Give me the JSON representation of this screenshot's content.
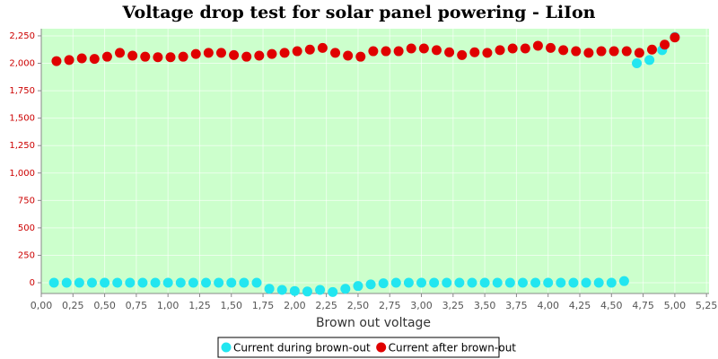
{
  "chart_data": {
    "type": "scatter",
    "title": "Voltage drop test for solar panel powering -  LiIon",
    "x_label": "Brown out voltage",
    "xlim": [
      0,
      5.27
    ],
    "ylim": [
      -98,
      2315
    ],
    "xticks": [
      {
        "value": 0,
        "label": "0,00"
      },
      {
        "value": 0.25,
        "label": "0,25"
      },
      {
        "value": 0.5,
        "label": "0,50"
      },
      {
        "value": 0.75,
        "label": "0,75"
      },
      {
        "value": 1,
        "label": "1,00"
      },
      {
        "value": 1.25,
        "label": "1,25"
      },
      {
        "value": 1.5,
        "label": "1,50"
      },
      {
        "value": 1.75,
        "label": "1,75"
      },
      {
        "value": 2,
        "label": "2,00"
      },
      {
        "value": 2.25,
        "label": "2,25"
      },
      {
        "value": 2.5,
        "label": "2,50"
      },
      {
        "value": 2.75,
        "label": "2,75"
      },
      {
        "value": 3,
        "label": "3,00"
      },
      {
        "value": 3.25,
        "label": "3,25"
      },
      {
        "value": 3.5,
        "label": "3,50"
      },
      {
        "value": 3.75,
        "label": "3,75"
      },
      {
        "value": 4,
        "label": "4,00"
      },
      {
        "value": 4.25,
        "label": "4,25"
      },
      {
        "value": 4.5,
        "label": "4,50"
      },
      {
        "value": 4.75,
        "label": "4,75"
      },
      {
        "value": 5,
        "label": "5,00"
      },
      {
        "value": 5.25,
        "label": "5,25"
      }
    ],
    "yticks": [
      0,
      250,
      500,
      750,
      {
        "value": 1000,
        "label": "1,000"
      },
      {
        "value": 1250,
        "label": "1,250"
      },
      {
        "value": 1500,
        "label": "1,500"
      },
      {
        "value": 1750,
        "label": "1,750"
      },
      {
        "value": 2000,
        "label": "2,000"
      },
      {
        "value": 2250,
        "label": "2,250"
      }
    ],
    "grid": true,
    "series": [
      {
        "name": "Current during brown-out",
        "color": "#22e6f0",
        "x": [
          0.1,
          0.2,
          0.3,
          0.4,
          0.5,
          0.6,
          0.7,
          0.8,
          0.9,
          1.0,
          1.1,
          1.2,
          1.3,
          1.4,
          1.5,
          1.6,
          1.7,
          1.8,
          1.9,
          2.0,
          2.1,
          2.2,
          2.3,
          2.4,
          2.5,
          2.6,
          2.7,
          2.8,
          2.9,
          3.0,
          3.1,
          3.2,
          3.3,
          3.4,
          3.5,
          3.6,
          3.7,
          3.8,
          3.9,
          4.0,
          4.1,
          4.2,
          4.3,
          4.4,
          4.5,
          4.6,
          4.7,
          4.8,
          4.9,
          5.0
        ],
        "values": [
          0,
          0,
          0,
          0,
          0,
          0,
          0,
          0,
          0,
          0,
          0,
          0,
          0,
          0,
          0,
          0,
          0,
          -55,
          -65,
          -75,
          -80,
          -65,
          -85,
          -55,
          -30,
          -15,
          -5,
          0,
          0,
          0,
          0,
          0,
          0,
          0,
          0,
          0,
          0,
          0,
          0,
          0,
          0,
          0,
          0,
          0,
          0,
          15,
          2000,
          2030,
          2120,
          2240
        ]
      },
      {
        "name": "Current after brown-out",
        "color": "#e00000",
        "x": [
          0.12,
          0.22,
          0.32,
          0.42,
          0.52,
          0.62,
          0.72,
          0.82,
          0.92,
          1.02,
          1.12,
          1.22,
          1.32,
          1.42,
          1.52,
          1.62,
          1.72,
          1.82,
          1.92,
          2.02,
          2.12,
          2.22,
          2.32,
          2.42,
          2.52,
          2.62,
          2.72,
          2.82,
          2.92,
          3.02,
          3.12,
          3.22,
          3.32,
          3.42,
          3.52,
          3.62,
          3.72,
          3.82,
          3.92,
          4.02,
          4.12,
          4.22,
          4.32,
          4.42,
          4.52,
          4.62,
          4.72,
          4.82,
          4.92,
          5.0
        ],
        "values": [
          2020,
          2030,
          2045,
          2040,
          2060,
          2095,
          2070,
          2060,
          2055,
          2055,
          2060,
          2085,
          2095,
          2095,
          2075,
          2060,
          2070,
          2085,
          2095,
          2110,
          2125,
          2140,
          2095,
          2070,
          2060,
          2110,
          2110,
          2110,
          2135,
          2135,
          2120,
          2100,
          2075,
          2100,
          2095,
          2120,
          2135,
          2135,
          2160,
          2140,
          2120,
          2110,
          2095,
          2110,
          2110,
          2110,
          2095,
          2125,
          2170,
          2235
        ]
      }
    ]
  }
}
